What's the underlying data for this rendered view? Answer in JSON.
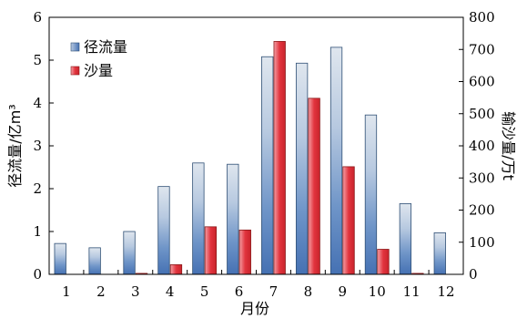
{
  "chart_data": {
    "type": "bar",
    "categories": [
      "1",
      "2",
      "3",
      "4",
      "5",
      "6",
      "7",
      "8",
      "9",
      "10",
      "11",
      "12"
    ],
    "xlabel": "月份",
    "y_left": {
      "label": "径流量/亿m³",
      "ylim": [
        0,
        6
      ],
      "ticks": [
        "0",
        "1",
        "2",
        "3",
        "4",
        "5",
        "6"
      ]
    },
    "y_right": {
      "label": "输沙量/万t",
      "ylim": [
        0,
        800
      ],
      "ticks": [
        "0",
        "100",
        "200",
        "300",
        "400",
        "500",
        "600",
        "700",
        "800"
      ]
    },
    "series": [
      {
        "name": "径流量",
        "axis": "left",
        "color": "#4a78b8",
        "values": [
          0.72,
          0.62,
          1.0,
          2.05,
          2.6,
          2.57,
          5.08,
          4.93,
          5.3,
          3.72,
          1.65,
          0.97
        ]
      },
      {
        "name": "沙量",
        "axis": "right",
        "color": "#e0303a",
        "values": [
          0,
          0,
          3,
          30,
          148,
          138,
          725,
          548,
          335,
          78,
          3,
          0
        ]
      }
    ],
    "legend_position": "top-left",
    "grid": false
  }
}
